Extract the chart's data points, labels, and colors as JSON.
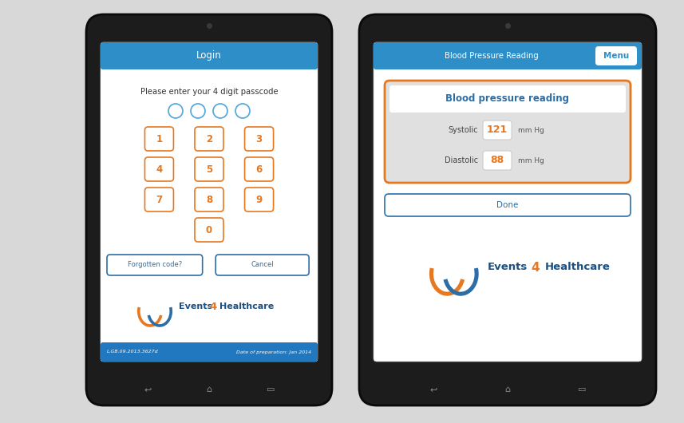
{
  "bg_color": "#d8d8d8",
  "blue_header": "#2e8ec8",
  "orange_color": "#e87820",
  "blue_text": "#2e6ea6",
  "circle_color": "#5aabda",
  "dark_text": "#333333",
  "footer_blue": "#2e7cc4",
  "footer_bg": "#2278be",
  "left_tablet": {
    "header_text": "Login",
    "passcode_text": "Please enter your 4 digit passcode",
    "keypad": [
      "1",
      "2",
      "3",
      "4",
      "5",
      "6",
      "7",
      "8",
      "9",
      "0"
    ],
    "btn1": "Forgotten code?",
    "btn2": "Cancel",
    "footer_left": "L.GB.09.2013.3627d",
    "footer_right": "Date of preparation: Jan 2014"
  },
  "right_tablet": {
    "header_text": "Blood Pressure Reading",
    "menu_text": "Menu",
    "card_title": "Blood pressure reading",
    "systolic_label": "Systolic",
    "systolic_value": "121",
    "systolic_unit": "mm Hg",
    "diastolic_label": "Diastolic",
    "diastolic_value": "88",
    "diastolic_unit": "mm Hg",
    "done_text": "Done"
  }
}
